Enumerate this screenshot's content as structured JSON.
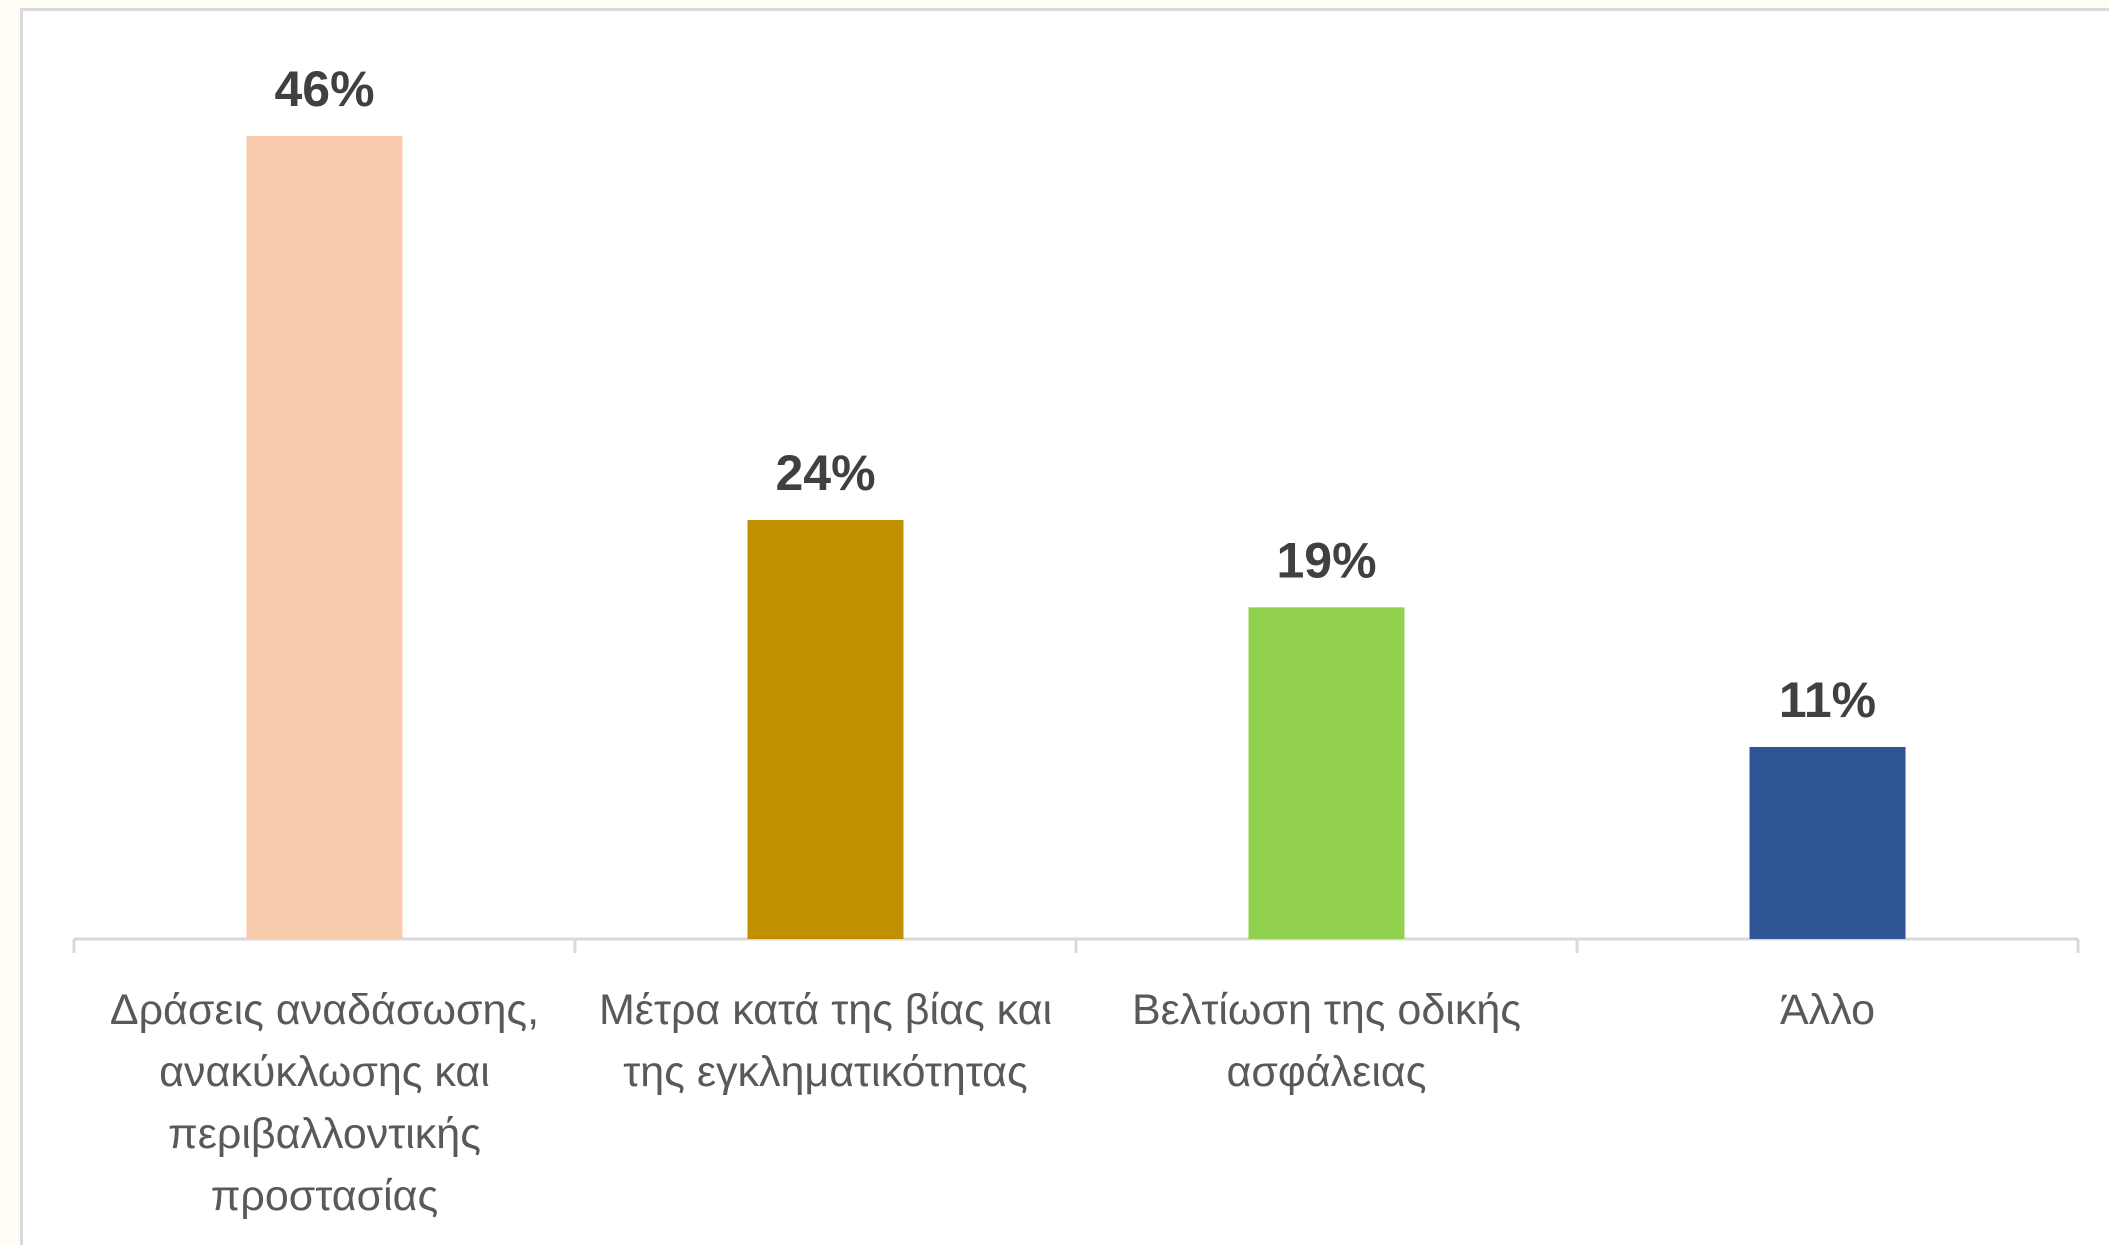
{
  "chart_data": {
    "type": "bar",
    "categories": [
      "Δράσεις αναδάσωσης, ανακύκλωσης και περιβαλλοντικής προστασίας",
      "Μέτρα κατά της βίας και της εγκληματικότητας",
      "Βελτίωση της οδικής ασφάλειας",
      "Άλλο"
    ],
    "values": [
      46,
      24,
      19,
      11
    ],
    "value_labels": [
      "46%",
      "24%",
      "19%",
      "11%"
    ],
    "colors": [
      "#f8cbad",
      "#bf9000",
      "#92d050",
      "#2f5597"
    ]
  }
}
